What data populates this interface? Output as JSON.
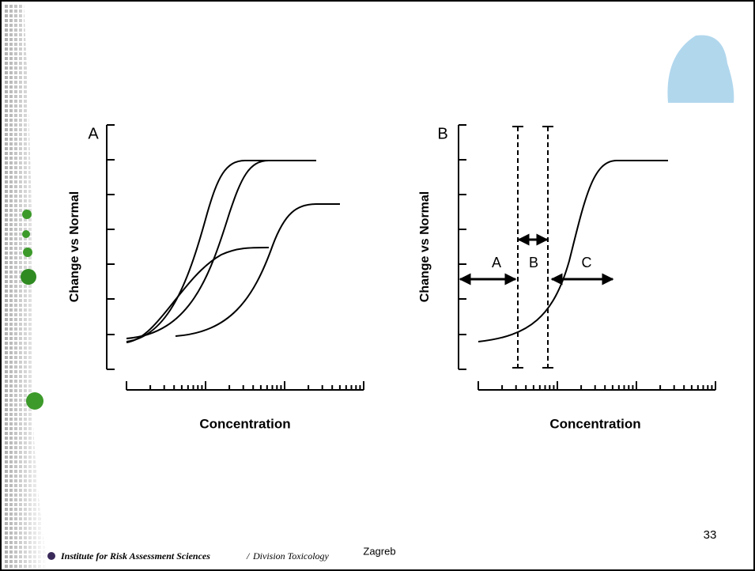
{
  "panels": [
    {
      "label": "A",
      "y_axis_label": "Change vs Normal",
      "x_axis_label": "Concentration"
    },
    {
      "label": "B",
      "y_axis_label": "Change vs Normal",
      "x_axis_label": "Concentration",
      "regions": [
        "A",
        "B",
        "C"
      ]
    }
  ],
  "footer": {
    "institute": "Institute for Risk Assessment Sciences",
    "separator": "/",
    "division": "Division Toxicology",
    "location": "Zagreb",
    "page_number": "33"
  }
}
